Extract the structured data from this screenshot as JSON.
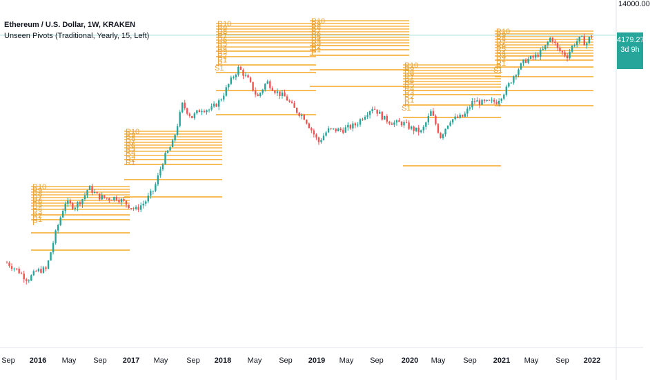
{
  "header": {
    "title": "Ethereum / U.S. Dollar, 1W, KRAKEN",
    "indicator": "Unseen Pivots (Traditional, Yearly, 15, Left)"
  },
  "price_axis": {
    "top_label": "14000.00",
    "last_price": "4179.27",
    "countdown": "3d 9h"
  },
  "colors": {
    "up": "#26a69a",
    "down": "#ef5350",
    "pivot": "#f5a623",
    "label": "#e8a33a",
    "price_line": "#26a69a"
  },
  "chart_data": {
    "type": "candlestick",
    "title": "Ethereum / U.S. Dollar, 1W, KRAKEN",
    "time_axis": [
      "Sep",
      "2016",
      "May",
      "Sep",
      "2017",
      "May",
      "Sep",
      "2018",
      "May",
      "Sep",
      "2019",
      "May",
      "Sep",
      "2020",
      "May",
      "Sep",
      "2021",
      "May",
      "Sep",
      "2022"
    ],
    "log_scale": true,
    "price_path_usd": [
      [
        2015.58,
        1.2
      ],
      [
        2015.7,
        0.9
      ],
      [
        2015.8,
        0.65
      ],
      [
        2015.9,
        0.9
      ],
      [
        2016.0,
        0.95
      ],
      [
        2016.1,
        3.5
      ],
      [
        2016.2,
        10.5
      ],
      [
        2016.3,
        9.0
      ],
      [
        2016.4,
        12.5
      ],
      [
        2016.45,
        18.0
      ],
      [
        2016.55,
        13.0
      ],
      [
        2016.65,
        12.0
      ],
      [
        2016.75,
        12.5
      ],
      [
        2016.85,
        10.0
      ],
      [
        2016.95,
        8.0
      ],
      [
        2017.05,
        10.5
      ],
      [
        2017.15,
        17.0
      ],
      [
        2017.25,
        50.0
      ],
      [
        2017.35,
        90.0
      ],
      [
        2017.45,
        350.0
      ],
      [
        2017.55,
        220.0
      ],
      [
        2017.65,
        300.0
      ],
      [
        2017.75,
        290.0
      ],
      [
        2017.85,
        400.0
      ],
      [
        2017.95,
        750.0
      ],
      [
        2018.05,
        1300.0
      ],
      [
        2018.15,
        850.0
      ],
      [
        2018.25,
        450.0
      ],
      [
        2018.35,
        800.0
      ],
      [
        2018.45,
        550.0
      ],
      [
        2018.55,
        450.0
      ],
      [
        2018.65,
        290.0
      ],
      [
        2018.75,
        220.0
      ],
      [
        2018.9,
        90.0
      ],
      [
        2019.0,
        140.0
      ],
      [
        2019.15,
        140.0
      ],
      [
        2019.3,
        170.0
      ],
      [
        2019.4,
        250.0
      ],
      [
        2019.48,
        320.0
      ],
      [
        2019.6,
        210.0
      ],
      [
        2019.7,
        180.0
      ],
      [
        2019.8,
        180.0
      ],
      [
        2019.9,
        145.0
      ],
      [
        2020.0,
        130.0
      ],
      [
        2020.1,
        270.0
      ],
      [
        2020.2,
        110.0
      ],
      [
        2020.3,
        200.0
      ],
      [
        2020.45,
        230.0
      ],
      [
        2020.55,
        400.0
      ],
      [
        2020.65,
        370.0
      ],
      [
        2020.8,
        390.0
      ],
      [
        2020.9,
        600.0
      ],
      [
        2021.0,
        1100.0
      ],
      [
        2021.1,
        1700.0
      ],
      [
        2021.2,
        1900.0
      ],
      [
        2021.3,
        2500.0
      ],
      [
        2021.38,
        4000.0
      ],
      [
        2021.45,
        2500.0
      ],
      [
        2021.55,
        2000.0
      ],
      [
        2021.62,
        3100.0
      ],
      [
        2021.7,
        3800.0
      ],
      [
        2021.75,
        3000.0
      ],
      [
        2021.8,
        4100.0
      ],
      [
        2021.83,
        4179.27
      ]
    ],
    "pivot_years": [
      {
        "year": "2016",
        "labels": [
          "R10",
          "R9",
          "R8",
          "R7",
          "R6",
          "R5",
          "R4",
          "R3",
          "R2",
          "R1",
          "P"
        ]
      },
      {
        "year": "2017",
        "labels": [
          "R10",
          "R9",
          "R8",
          "R7",
          "R6",
          "R5",
          "R4",
          "R3",
          "R2",
          "R1"
        ]
      },
      {
        "year": "2018",
        "labels": [
          "R10",
          "R9",
          "R8",
          "R7",
          "R6",
          "R5",
          "R4",
          "R3",
          "R2",
          "R1",
          "P",
          "S1"
        ]
      },
      {
        "year": "2019",
        "labels": [
          "R10",
          "R9",
          "R8",
          "R7",
          "R6",
          "R5",
          "R4",
          "R3",
          "R2",
          "R1",
          "P"
        ]
      },
      {
        "year": "2020",
        "labels": [
          "R10",
          "R9",
          "R8",
          "R7",
          "R6",
          "R5",
          "R4",
          "R3",
          "R2",
          "R1",
          "P",
          "S1"
        ]
      },
      {
        "year": "2021",
        "labels": [
          "R10",
          "R9",
          "R8",
          "R7",
          "R6",
          "R5",
          "R4",
          "R3",
          "R2",
          "R1",
          "P",
          "S1"
        ]
      }
    ],
    "last_price": 4179.27
  }
}
